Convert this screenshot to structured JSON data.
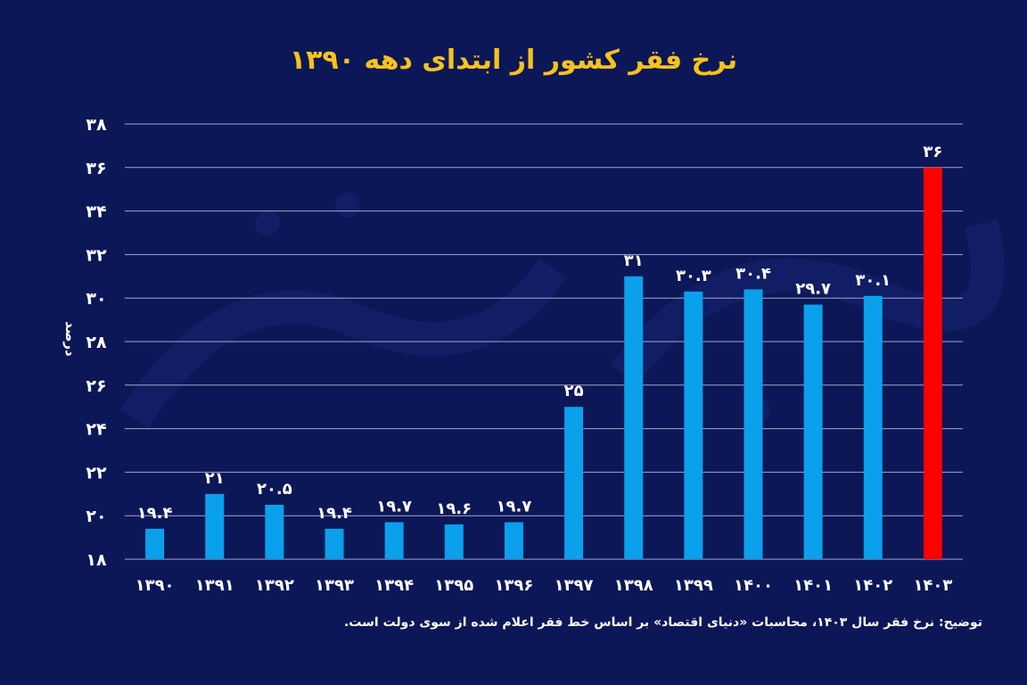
{
  "chart_data": {
    "type": "bar",
    "title": "نرخ فقر کشور از ابتدای دهه ۱۳۹۰",
    "ylabel": "درصد",
    "xlabel": "",
    "ylim": [
      18,
      38
    ],
    "yticks": [
      "۱۸",
      "۲۰",
      "۲۲",
      "۲۴",
      "۲۶",
      "۲۸",
      "۳۰",
      "۳۲",
      "۳۴",
      "۳۶",
      "۳۸"
    ],
    "grid": true,
    "categories": [
      "۱۳۹۰",
      "۱۳۹۱",
      "۱۳۹۲",
      "۱۳۹۳",
      "۱۳۹۴",
      "۱۳۹۵",
      "۱۳۹۶",
      "۱۳۹۷",
      "۱۳۹۸",
      "۱۳۹۹",
      "۱۴۰۰",
      "۱۴۰۱",
      "۱۴۰۲",
      "۱۴۰۳"
    ],
    "values": [
      19.4,
      21,
      20.5,
      19.4,
      19.7,
      19.6,
      19.7,
      25,
      31,
      30.3,
      30.4,
      29.7,
      30.1,
      36
    ],
    "value_labels": [
      "۱۹.۴",
      "۲۱",
      "۲۰.۵",
      "۱۹.۴",
      "۱۹.۷",
      "۱۹.۶",
      "۱۹.۷",
      "۲۵",
      "۳۱",
      "۳۰.۳",
      "۳۰.۴",
      "۲۹.۷",
      "۳۰.۱",
      "۳۶"
    ],
    "colors": {
      "bar": "#0aa0ec",
      "highlight_bar": "#ff0000",
      "highlight_index": 13,
      "text": "#ffffff",
      "title": "#f6c21c",
      "grid": "#c8cce8",
      "background": "#0c1758"
    }
  },
  "footnote": "توضیح: نرخ فقر سال ۱۴۰۳، محاسبات «دنیای اقتصاد» بر اساس خط فقر اعلام شده از سوی دولت است."
}
